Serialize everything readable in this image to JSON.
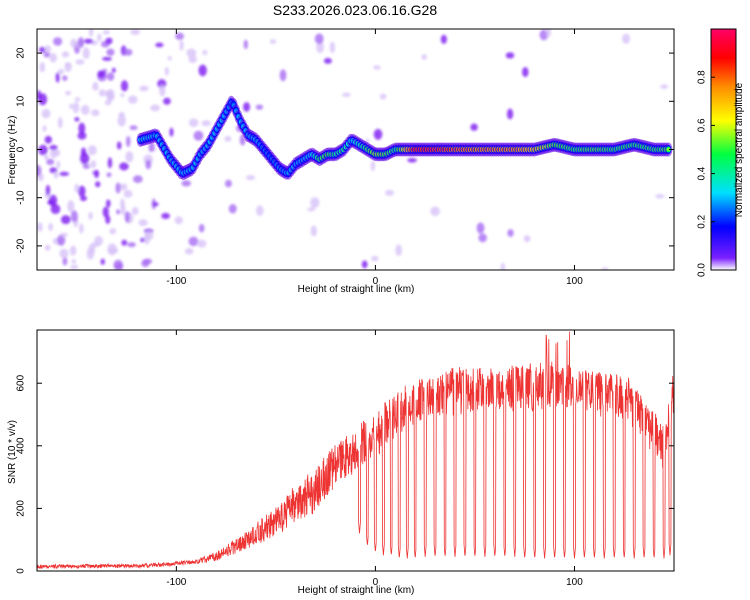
{
  "title": "S233.2026.023.06.16.G28",
  "chart_data": [
    {
      "type": "heatmap",
      "xlabel": "Height of straight line (km)",
      "ylabel": "Frequency (Hz)",
      "xlim": [
        -170,
        150
      ],
      "ylim": [
        -25,
        25
      ],
      "xticks": [
        -100,
        0,
        100
      ],
      "xtick_labels": [
        "-100",
        "0",
        "100"
      ],
      "yticks": [
        -20,
        -10,
        0,
        10,
        20
      ],
      "ytick_labels": [
        "-20",
        "-10",
        "0",
        "10",
        "20"
      ],
      "colorbar": {
        "label": "Normalized spectral amplitude",
        "range": [
          0,
          1
        ],
        "ticks": [
          0.0,
          0.2,
          0.4,
          0.6,
          0.8
        ],
        "tick_labels": [
          "0.0",
          "0.2",
          "0.4",
          "0.6",
          "0.8"
        ],
        "colors": [
          "#ffffff",
          "#6a00ff",
          "#0000ff",
          "#00d8ff",
          "#00ff40",
          "#ffff00",
          "#ff8c00",
          "#ff0000",
          "#ff0066"
        ]
      },
      "ridge": {
        "x": [
          -118,
          -110,
          -103,
          -97,
          -92,
          -88,
          -84,
          -80,
          -76,
          -72,
          -68,
          -64,
          -60,
          -56,
          -52,
          -48,
          -44,
          -40,
          -36,
          -32,
          -28,
          -24,
          -20,
          -16,
          -12,
          -8,
          -4,
          0,
          5,
          10,
          20,
          30,
          40,
          50,
          60,
          70,
          80,
          90,
          100,
          110,
          120,
          130,
          140,
          148
        ],
        "freq": [
          2,
          3,
          -2,
          -5,
          -4,
          -1,
          1,
          4,
          7,
          10,
          6,
          3,
          2,
          0,
          -2,
          -4,
          -5,
          -3,
          -2,
          -1,
          -2,
          -1,
          -1,
          0,
          2,
          1,
          0,
          -1,
          -1,
          0,
          0,
          0,
          0,
          0,
          0,
          0,
          0,
          1,
          0,
          0,
          0,
          1,
          0,
          0
        ],
        "amplitude": [
          0.35,
          0.3,
          0.3,
          0.32,
          0.3,
          0.3,
          0.3,
          0.3,
          0.3,
          0.25,
          0.3,
          0.3,
          0.3,
          0.25,
          0.25,
          0.28,
          0.3,
          0.3,
          0.3,
          0.35,
          0.5,
          0.55,
          0.45,
          0.45,
          0.35,
          0.4,
          0.5,
          0.6,
          0.55,
          0.45,
          0.95,
          0.95,
          0.85,
          0.8,
          0.8,
          0.8,
          0.7,
          0.55,
          0.5,
          0.55,
          0.5,
          0.5,
          0.5,
          0.55
        ]
      }
    },
    {
      "type": "line",
      "xlabel": "Height of straight line (km)",
      "ylabel": "SNR (10 * v/v)",
      "xlim": [
        -170,
        150
      ],
      "ylim": [
        0,
        770
      ],
      "xticks": [
        -100,
        0,
        100
      ],
      "xtick_labels": [
        "-100",
        "0",
        "100"
      ],
      "yticks": [
        0,
        200,
        400,
        600
      ],
      "ytick_labels": [
        "0",
        "200",
        "400",
        "600"
      ],
      "color": "#ee3333",
      "envelope": {
        "x": [
          -170,
          -120,
          -110,
          -100,
          -90,
          -80,
          -70,
          -60,
          -50,
          -40,
          -30,
          -20,
          -10,
          0,
          10,
          20,
          30,
          40,
          50,
          60,
          70,
          80,
          90,
          100,
          110,
          120,
          130,
          140,
          145,
          150
        ],
        "y": [
          20,
          22,
          25,
          30,
          35,
          60,
          100,
          150,
          200,
          270,
          330,
          400,
          450,
          500,
          560,
          600,
          630,
          640,
          645,
          650,
          655,
          650,
          660,
          650,
          640,
          630,
          600,
          500,
          460,
          640
        ]
      },
      "dips": {
        "x": [
          -8,
          -4,
          0,
          4,
          8,
          12,
          16,
          20,
          25,
          30,
          35,
          40,
          45,
          50,
          55,
          60,
          65,
          70,
          75,
          80,
          85,
          90,
          95,
          100,
          105,
          110,
          115,
          120,
          125,
          130,
          135,
          140,
          145,
          148
        ],
        "y": [
          120,
          80,
          60,
          50,
          50,
          40,
          40,
          40,
          45,
          45,
          45,
          45,
          45,
          45,
          45,
          45,
          45,
          45,
          40,
          40,
          40,
          40,
          40,
          40,
          40,
          40,
          40,
          40,
          40,
          40,
          40,
          40,
          40,
          50
        ]
      }
    }
  ]
}
